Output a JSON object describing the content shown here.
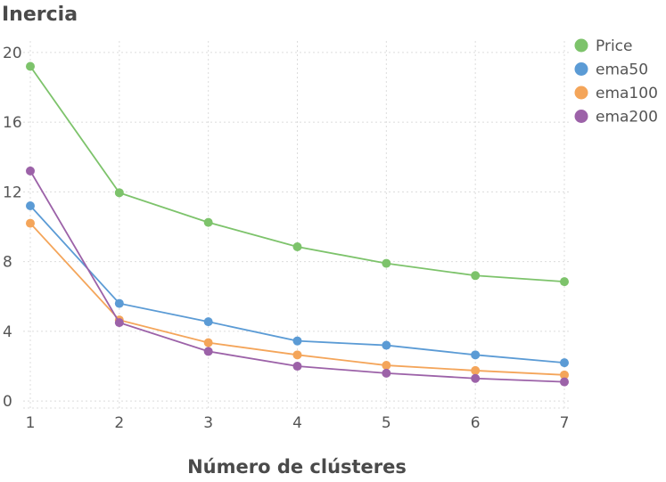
{
  "chart_data": {
    "type": "line",
    "title": "Inercia",
    "xlabel": "Número de clústeres",
    "ylabel": "",
    "x": [
      1,
      2,
      3,
      4,
      5,
      6,
      7
    ],
    "xlim": [
      1,
      7
    ],
    "ylim": [
      -0.4,
      20.4
    ],
    "yticks": [
      0,
      4,
      8,
      12,
      16,
      20
    ],
    "grid": true,
    "legend_position": "top-right",
    "series": [
      {
        "name": "Price",
        "color": "#7dc36b",
        "values": [
          19.2,
          11.95,
          10.25,
          8.85,
          7.9,
          7.2,
          6.85
        ]
      },
      {
        "name": "ema50",
        "color": "#5b9bd5",
        "values": [
          11.2,
          5.6,
          4.55,
          3.45,
          3.2,
          2.65,
          2.2
        ]
      },
      {
        "name": "ema100",
        "color": "#f4a55a",
        "values": [
          10.2,
          4.65,
          3.35,
          2.65,
          2.05,
          1.75,
          1.5
        ]
      },
      {
        "name": "ema200",
        "color": "#9c62a8",
        "values": [
          13.2,
          4.5,
          2.85,
          2.0,
          1.6,
          1.3,
          1.1
        ]
      }
    ]
  }
}
